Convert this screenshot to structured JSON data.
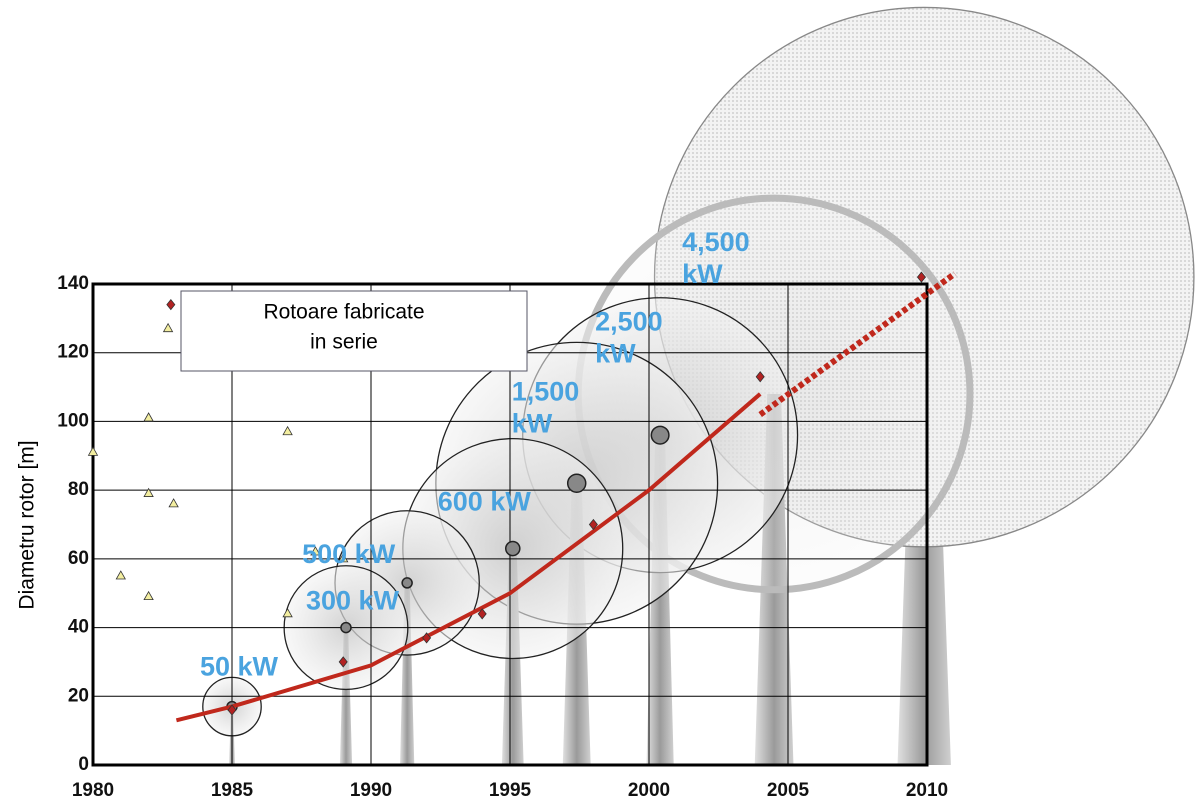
{
  "chart_data": {
    "type": "scatter",
    "y_label": "Diametru rotor [m]",
    "legend_box": [
      "Rotoare fabricate",
      "in serie"
    ],
    "xlim": [
      1980,
      2010
    ],
    "ylim": [
      0,
      140
    ],
    "xticks": [
      1980,
      1985,
      1990,
      1995,
      2000,
      2005,
      2010
    ],
    "yticks": [
      0,
      20,
      40,
      60,
      80,
      100,
      120,
      140
    ],
    "grid": true,
    "label_color": "#4aa3df",
    "series": [
      {
        "marker": "diamond",
        "color": "#b22222",
        "x": [
          1982.8,
          1985,
          1989,
          1992,
          1994,
          1998,
          2004,
          2009.8
        ],
        "values": [
          134,
          16,
          30,
          37,
          44,
          70,
          113,
          142
        ]
      },
      {
        "marker": "triangle",
        "color": "#f3eea0",
        "x": [
          1980,
          1981,
          1982,
          1982,
          1982,
          1982.9,
          1982.7,
          1987,
          1987,
          1988,
          1989
        ],
        "values": [
          91,
          55,
          101,
          79,
          49,
          76,
          127,
          97,
          44,
          62,
          60
        ]
      }
    ],
    "trend": [
      {
        "style": "solid",
        "color": "#c0281c",
        "x": [
          1983,
          1985,
          1990,
          1995,
          2000,
          2004
        ],
        "values": [
          13,
          17,
          29,
          50,
          80,
          108
        ]
      },
      {
        "style": "dashed",
        "color": "#c0281c",
        "x": [
          2004,
          2011
        ],
        "values": [
          102,
          143
        ]
      }
    ],
    "turbines": [
      {
        "x": 2009.9,
        "values": [
          142,
          157
        ]
      },
      {
        "label": [
          "4,500",
          "kW"
        ],
        "x": 2004.5,
        "values": [
          108,
          114
        ]
      },
      {
        "label": [
          "2,500",
          "kW"
        ],
        "x": 2000.4,
        "values": [
          96,
          80
        ]
      },
      {
        "label": [
          "1,500",
          "kW"
        ],
        "x": 1997.4,
        "values": [
          82,
          82
        ]
      },
      {
        "label": [
          "600 kW"
        ],
        "x": 1995.1,
        "values": [
          63,
          64
        ]
      },
      {
        "label": [
          "500 kW"
        ],
        "x": 1991.3,
        "values": [
          53,
          42
        ]
      },
      {
        "label": [
          "300 kW"
        ],
        "x": 1989.1,
        "values": [
          40,
          36
        ]
      },
      {
        "label": [
          "50 kW"
        ],
        "x": 1985,
        "values": [
          17,
          17
        ]
      }
    ]
  }
}
